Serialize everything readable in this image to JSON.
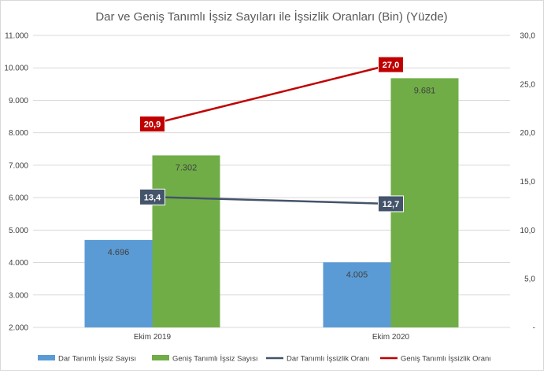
{
  "chart_data": {
    "type": "bar",
    "title": "Dar ve Geniş Tanımlı İşsiz Sayıları ile İşsizlik Oranları (Bin) (Yüzde)",
    "categories": [
      "Ekim 2019",
      "Ekim 2020"
    ],
    "left_axis": {
      "ylim": [
        2000,
        11000
      ],
      "ticks": [
        "2.000",
        "3.000",
        "4.000",
        "5.000",
        "6.000",
        "7.000",
        "8.000",
        "9.000",
        "10.000",
        "11.000"
      ]
    },
    "right_axis": {
      "ylim": [
        0,
        30
      ],
      "ticks": [
        "-",
        "5,0",
        "10,0",
        "15,0",
        "20,0",
        "25,0",
        "30,0"
      ]
    },
    "grid": true,
    "legend_position": "bottom",
    "series": [
      {
        "name": "Dar Tanımlı İşsiz Sayısı",
        "kind": "bar",
        "axis": "left",
        "color": "#5b9bd5",
        "values": [
          4696,
          4005
        ],
        "labels": [
          "4.696",
          "4.005"
        ]
      },
      {
        "name": "Geniş Tanımlı İşsiz Sayısı",
        "kind": "bar",
        "axis": "left",
        "color": "#70ad47",
        "values": [
          7302,
          9681
        ],
        "labels": [
          "7.302",
          "9.681"
        ]
      },
      {
        "name": "Dar Tanımlı İşsizlik Oranı",
        "kind": "line",
        "axis": "right",
        "color": "#44546a",
        "values": [
          13.4,
          12.7
        ],
        "labels": [
          "13,4",
          "12,7"
        ]
      },
      {
        "name": "Geniş Tanımlı İşsizlik Oranı",
        "kind": "line",
        "axis": "right",
        "color": "#c00000",
        "values": [
          20.9,
          27.0
        ],
        "labels": [
          "20,9",
          "27,0"
        ]
      }
    ]
  }
}
